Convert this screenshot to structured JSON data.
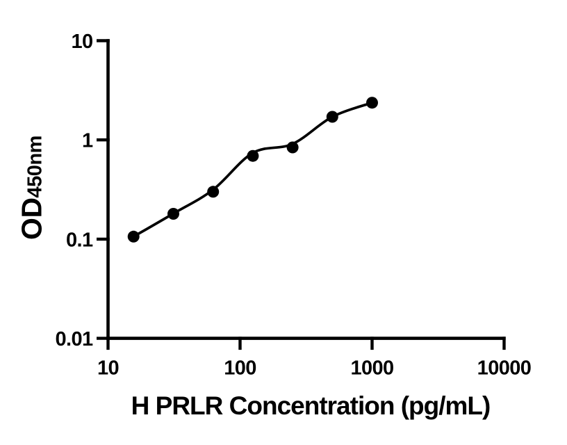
{
  "figure": {
    "background_color": "#ffffff",
    "ink_color": "#000000"
  },
  "chart_data": {
    "type": "scatter",
    "title": "",
    "xlabel": "H PRLR Concentration (pg/mL)",
    "ylabel": "OD",
    "ylabel_subscript": "450nm",
    "x_scale": "log",
    "y_scale": "log",
    "xlim": [
      10,
      10000
    ],
    "ylim": [
      0.01,
      10
    ],
    "grid": false,
    "legend": null,
    "x_ticks": [
      {
        "value": 10,
        "label": "10"
      },
      {
        "value": 100,
        "label": "100"
      },
      {
        "value": 1000,
        "label": "1000"
      },
      {
        "value": 10000,
        "label": "10000"
      }
    ],
    "y_ticks": [
      {
        "value": 10,
        "label": "10"
      },
      {
        "value": 1,
        "label": "1"
      },
      {
        "value": 0.1,
        "label": "0.1"
      },
      {
        "value": 0.01,
        "label": "0.01"
      }
    ],
    "series": [
      {
        "name": "standard-points",
        "type": "scatter",
        "marker": "filled-circle",
        "color": "#000000",
        "x": [
          15.6,
          31.25,
          62.5,
          125,
          250,
          500,
          1000
        ],
        "y": [
          0.106,
          0.18,
          0.3,
          0.69,
          0.84,
          1.71,
          2.37
        ]
      },
      {
        "name": "fit-curve",
        "type": "line",
        "color": "#000000",
        "x": [
          15.6,
          31.25,
          62.5,
          125,
          250,
          500,
          1000
        ],
        "y": [
          0.106,
          0.181,
          0.315,
          0.74,
          0.91,
          1.71,
          2.37
        ]
      }
    ]
  }
}
